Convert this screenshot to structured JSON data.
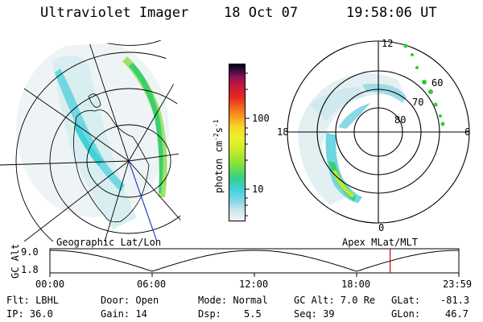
{
  "header": {
    "instrument": "Ultraviolet Imager",
    "date": "18 Oct 07",
    "time": "19:58:06 UT"
  },
  "colorbar": {
    "units": "photon cm",
    "units_exp1": "-2",
    "units_s": "s",
    "units_exp2": "-1",
    "tick_100": "100",
    "tick_10": "10"
  },
  "polar": {
    "top_label": "12",
    "left_label": "18",
    "right_label": "6",
    "bottom_label": "0",
    "lat_60": "60",
    "lat_70": "70",
    "lat_80": "80"
  },
  "panel_labels": {
    "left": "Geographic Lat/Lon",
    "right": "Apex MLat/MLT"
  },
  "altitude_plot": {
    "ylabel": "GC Alt",
    "y_max": "9.0",
    "y_min": "1.8",
    "x_ticks": [
      "00:00",
      "06:00",
      "12:00",
      "18:00",
      "23:59"
    ],
    "current_time_fraction": 0.832
  },
  "info": {
    "flt": "Flt: LBHL",
    "ip": "IP: 36.0",
    "door": "Door: Open",
    "gain": "Gain: 14",
    "mode": "Mode: Normal",
    "dsp_label": "Dsp:",
    "dsp_value": "5.5",
    "gc_alt": "GC Alt: 7.0 Re",
    "seq": "Seq: 39",
    "glat_label": "GLat:",
    "glat_value": "-81.3",
    "glon_label": "GLon:",
    "glon_value": "46.7"
  },
  "colors": {
    "aurora_cyan": "#5fd3e0",
    "aurora_green": "#3bd06e",
    "aurora_yellow": "#bfe830",
    "marker_red": "#d00000",
    "track_blue": "#1a2cc8"
  }
}
